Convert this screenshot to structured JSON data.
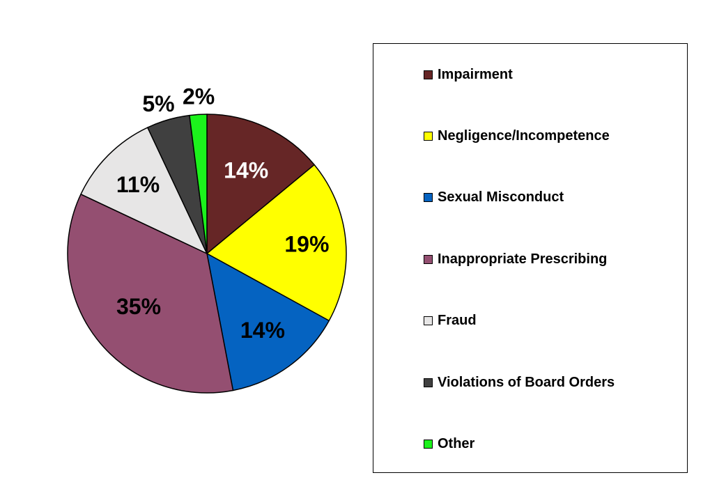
{
  "chart_data": {
    "type": "pie",
    "slices": [
      {
        "label": "Impairment",
        "value": 14,
        "value_label": "14%",
        "color": "#662626",
        "label_color": "#ffffff"
      },
      {
        "label": "Negligence/Incompetence",
        "value": 19,
        "value_label": "19%",
        "color": "#ffff00",
        "label_color": "#000000"
      },
      {
        "label": "Sexual Misconduct",
        "value": 14,
        "value_label": "14%",
        "color": "#0563c1",
        "label_color": "#000000"
      },
      {
        "label": "Inappropriate Prescribing",
        "value": 35,
        "value_label": "35%",
        "color": "#944f71",
        "label_color": "#000000"
      },
      {
        "label": "Fraud",
        "value": 11,
        "value_label": "11%",
        "color": "#e7e6e6",
        "label_color": "#000000"
      },
      {
        "label": "Violations of Board Orders",
        "value": 5,
        "value_label": "5%",
        "color": "#404040",
        "label_color": "#000000"
      },
      {
        "label": "Other",
        "value": 2,
        "value_label": "2%",
        "color": "#1cf21c",
        "label_color": "#000000"
      }
    ],
    "start_angle": "top",
    "direction": "clockwise",
    "legend_position": "right"
  }
}
